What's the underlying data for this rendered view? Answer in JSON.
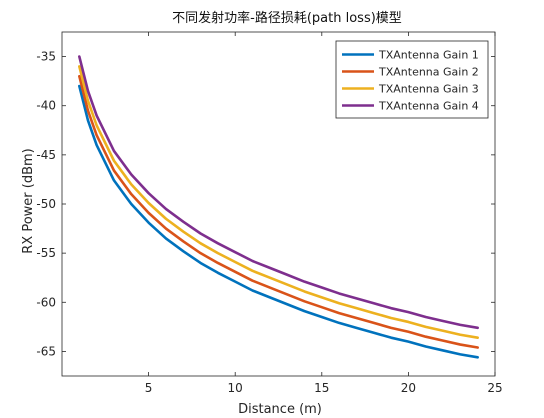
{
  "chart_data": {
    "type": "line",
    "title": "不同发射功率-路径损耗(path loss)模型",
    "xlabel": "Distance (m)",
    "ylabel": "RX Power (dBm)",
    "xlim": [
      0,
      25
    ],
    "ylim": [
      -67.5,
      -32.5
    ],
    "xticks": [
      5,
      10,
      15,
      20,
      25
    ],
    "yticks": [
      -35,
      -40,
      -45,
      -50,
      -55,
      -60,
      -65
    ],
    "xtick_labels": [
      "5",
      "10",
      "15",
      "20",
      "25"
    ],
    "ytick_labels": [
      "-35",
      "-40",
      "-45",
      "-50",
      "-55",
      "-60",
      "-65"
    ],
    "grid": false,
    "legend_position": "top-right",
    "x": [
      1,
      1.5,
      2,
      3,
      4,
      5,
      6,
      7,
      8,
      9,
      10,
      11,
      12,
      13,
      14,
      15,
      16,
      17,
      18,
      19,
      20,
      21,
      22,
      23,
      24
    ],
    "series": [
      {
        "name": "TXAntenna Gain 1",
        "color": "#0072BD",
        "values": [
          -38.0,
          -41.5,
          -44.0,
          -47.6,
          -50.0,
          -51.9,
          -53.5,
          -54.8,
          -56.0,
          -57.0,
          -57.9,
          -58.8,
          -59.5,
          -60.2,
          -60.9,
          -61.5,
          -62.1,
          -62.6,
          -63.1,
          -63.6,
          -64.0,
          -64.5,
          -64.9,
          -65.3,
          -65.6
        ]
      },
      {
        "name": "TXAntenna Gain 2",
        "color": "#D95319",
        "values": [
          -37.0,
          -40.5,
          -43.0,
          -46.6,
          -49.0,
          -50.9,
          -52.5,
          -53.8,
          -55.0,
          -56.0,
          -56.9,
          -57.8,
          -58.5,
          -59.2,
          -59.9,
          -60.5,
          -61.1,
          -61.6,
          -62.1,
          -62.6,
          -63.0,
          -63.5,
          -63.9,
          -64.3,
          -64.6
        ]
      },
      {
        "name": "TXAntenna Gain 3",
        "color": "#EDB120",
        "values": [
          -36.0,
          -39.5,
          -42.0,
          -45.6,
          -48.0,
          -49.9,
          -51.5,
          -52.8,
          -54.0,
          -55.0,
          -55.9,
          -56.8,
          -57.5,
          -58.2,
          -58.9,
          -59.5,
          -60.1,
          -60.6,
          -61.1,
          -61.6,
          -62.0,
          -62.5,
          -62.9,
          -63.3,
          -63.6
        ]
      },
      {
        "name": "TXAntenna Gain 4",
        "color": "#7E2F8E",
        "values": [
          -35.0,
          -38.5,
          -41.0,
          -44.6,
          -47.0,
          -48.9,
          -50.5,
          -51.8,
          -53.0,
          -54.0,
          -54.9,
          -55.8,
          -56.5,
          -57.2,
          -57.9,
          -58.5,
          -59.1,
          -59.6,
          -60.1,
          -60.6,
          -61.0,
          -61.5,
          -61.9,
          -62.3,
          -62.6
        ]
      }
    ]
  }
}
